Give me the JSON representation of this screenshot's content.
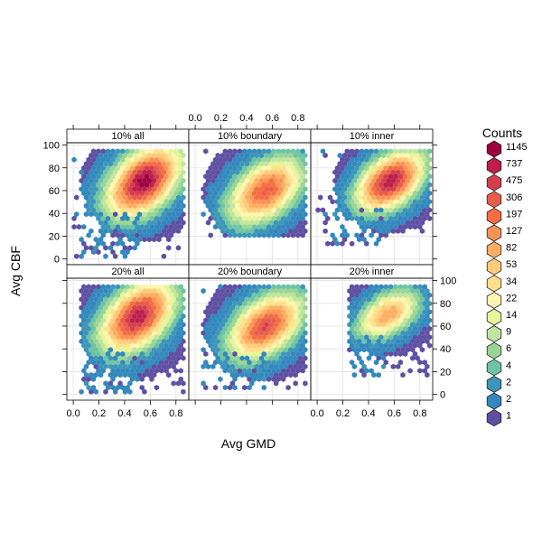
{
  "chart_data": {
    "type": "hexbin",
    "xlabel": "Avg GMD",
    "ylabel": "Avg CBF",
    "xlim": [
      -0.05,
      0.9
    ],
    "ylim": [
      -5,
      102
    ],
    "x_ticks": [
      0.0,
      0.2,
      0.4,
      0.6,
      0.8
    ],
    "x_tick_labels": [
      "0.0",
      "0.2",
      "0.4",
      "0.6",
      "0.8"
    ],
    "y_ticks": [
      0,
      20,
      40,
      60,
      80,
      100
    ],
    "y_tick_labels": [
      "0",
      "20",
      "40",
      "60",
      "80",
      "100"
    ],
    "grid": true,
    "legend": {
      "title": "Counts",
      "position": "right",
      "labels": [
        "1145",
        "737",
        "475",
        "306",
        "197",
        "127",
        "82",
        "53",
        "34",
        "22",
        "14",
        "9",
        "6",
        "4",
        "2",
        "2",
        "1"
      ],
      "colors": [
        "#9e0142",
        "#bd1f4a",
        "#d53e4f",
        "#e75c4a",
        "#f46d43",
        "#f99355",
        "#fdae61",
        "#fecb7a",
        "#fee08b",
        "#fff4b0",
        "#e6f598",
        "#bfe5a0",
        "#99d594",
        "#6cc4a4",
        "#3d95b8",
        "#3288bd",
        "#5e4fa2"
      ]
    },
    "panels": [
      {
        "title": "10% all",
        "row": 0,
        "col": 0,
        "peak": [
          0.55,
          68
        ],
        "spread": [
          0.24,
          26
        ],
        "core": 1.0,
        "x_range": [
          0.0,
          0.86
        ],
        "y_range": [
          0,
          98
        ],
        "lower_tail": true
      },
      {
        "title": "10% boundary",
        "row": 0,
        "col": 1,
        "peak": [
          0.55,
          60
        ],
        "spread": [
          0.24,
          24
        ],
        "core": 0.8,
        "x_range": [
          0.05,
          0.86
        ],
        "y_range": [
          20,
          96
        ],
        "lower_tail": false
      },
      {
        "title": "10% inner",
        "row": 0,
        "col": 2,
        "peak": [
          0.57,
          68
        ],
        "spread": [
          0.22,
          22
        ],
        "core": 0.95,
        "x_range": [
          0.0,
          0.88
        ],
        "y_range": [
          10,
          97
        ],
        "lower_tail": true
      },
      {
        "title": "20% all",
        "row": 1,
        "col": 0,
        "peak": [
          0.5,
          68
        ],
        "spread": [
          0.24,
          26
        ],
        "core": 0.95,
        "x_range": [
          0.05,
          0.86
        ],
        "y_range": [
          0,
          98
        ],
        "lower_tail": true
      },
      {
        "title": "20% boundary",
        "row": 1,
        "col": 1,
        "peak": [
          0.55,
          60
        ],
        "spread": [
          0.24,
          24
        ],
        "core": 0.85,
        "x_range": [
          0.05,
          0.86
        ],
        "y_range": [
          5,
          96
        ],
        "lower_tail": true
      },
      {
        "title": "20% inner",
        "row": 1,
        "col": 2,
        "peak": [
          0.55,
          70
        ],
        "spread": [
          0.2,
          18
        ],
        "core": 0.65,
        "x_range": [
          0.25,
          0.88
        ],
        "y_range": [
          15,
          97
        ],
        "lower_tail": true
      }
    ]
  }
}
